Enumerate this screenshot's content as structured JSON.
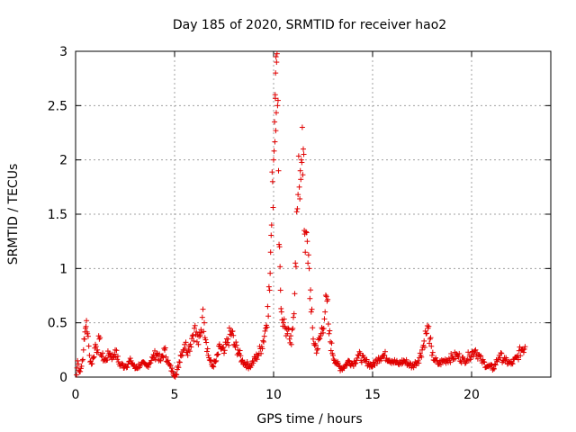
{
  "chart_data": {
    "type": "scatter",
    "title": "Day 185 of 2020, SRMTID for receiver hao2",
    "xlabel": "GPS time / hours",
    "ylabel": "SRMTID / TECUs",
    "xlim": [
      0,
      24
    ],
    "ylim": [
      0,
      3
    ],
    "xticks": [
      0,
      5,
      10,
      15,
      20
    ],
    "yticks": [
      0,
      0.5,
      1,
      1.5,
      2,
      2.5,
      3
    ],
    "xtick_labels": [
      "0",
      "5",
      "10",
      "15",
      "20"
    ],
    "ytick_labels": [
      "0",
      "0.5",
      "1",
      "1.5",
      "2",
      "2.5",
      "3"
    ],
    "grid": true,
    "marker": "+",
    "color": "#e00000",
    "x_range_data": [
      0,
      22.7
    ],
    "series": [
      {
        "name": "hao2",
        "points": [
          [
            0.05,
            0.02
          ],
          [
            0.1,
            0.15
          ],
          [
            0.2,
            0.05
          ],
          [
            0.3,
            0.1
          ],
          [
            0.4,
            0.25
          ],
          [
            0.45,
            0.35
          ],
          [
            0.5,
            0.45
          ],
          [
            0.55,
            0.52
          ],
          [
            0.6,
            0.4
          ],
          [
            0.7,
            0.2
          ],
          [
            0.8,
            0.12
          ],
          [
            0.9,
            0.18
          ],
          [
            1.0,
            0.3
          ],
          [
            1.1,
            0.25
          ],
          [
            1.2,
            0.35
          ],
          [
            1.3,
            0.2
          ],
          [
            1.5,
            0.15
          ],
          [
            1.7,
            0.22
          ],
          [
            1.9,
            0.18
          ],
          [
            2.0,
            0.25
          ],
          [
            2.2,
            0.12
          ],
          [
            2.5,
            0.1
          ],
          [
            2.8,
            0.15
          ],
          [
            3.0,
            0.08
          ],
          [
            3.3,
            0.12
          ],
          [
            3.6,
            0.1
          ],
          [
            3.9,
            0.18
          ],
          [
            4.1,
            0.22
          ],
          [
            4.3,
            0.15
          ],
          [
            4.5,
            0.25
          ],
          [
            4.7,
            0.12
          ],
          [
            4.9,
            0.05
          ],
          [
            5.1,
            0.02
          ],
          [
            5.3,
            0.2
          ],
          [
            5.5,
            0.3
          ],
          [
            5.7,
            0.25
          ],
          [
            5.9,
            0.38
          ],
          [
            6.0,
            0.45
          ],
          [
            6.2,
            0.3
          ],
          [
            6.4,
            0.55
          ],
          [
            6.5,
            0.5
          ],
          [
            6.7,
            0.2
          ],
          [
            6.9,
            0.1
          ],
          [
            7.1,
            0.15
          ],
          [
            7.3,
            0.28
          ],
          [
            7.5,
            0.22
          ],
          [
            7.7,
            0.35
          ],
          [
            7.9,
            0.42
          ],
          [
            8.0,
            0.3
          ],
          [
            8.2,
            0.25
          ],
          [
            8.4,
            0.15
          ],
          [
            8.6,
            0.12
          ],
          [
            8.8,
            0.1
          ],
          [
            9.0,
            0.15
          ],
          [
            9.2,
            0.2
          ],
          [
            9.4,
            0.28
          ],
          [
            9.6,
            0.45
          ],
          [
            9.7,
            0.65
          ],
          [
            9.8,
            0.8
          ],
          [
            9.85,
            1.15
          ],
          [
            9.9,
            1.4
          ],
          [
            9.95,
            1.8
          ],
          [
            10.0,
            2.0
          ],
          [
            10.05,
            2.35
          ],
          [
            10.08,
            2.6
          ],
          [
            10.1,
            2.8
          ],
          [
            10.12,
            2.95
          ],
          [
            10.15,
            2.9
          ],
          [
            10.2,
            2.5
          ],
          [
            10.25,
            1.9
          ],
          [
            10.3,
            1.2
          ],
          [
            10.35,
            0.8
          ],
          [
            10.4,
            0.6
          ],
          [
            10.5,
            0.5
          ],
          [
            10.6,
            0.45
          ],
          [
            10.7,
            0.4
          ],
          [
            10.8,
            0.35
          ],
          [
            10.9,
            0.3
          ],
          [
            11.0,
            0.55
          ],
          [
            11.1,
            1.05
          ],
          [
            11.2,
            1.55
          ],
          [
            11.3,
            1.75
          ],
          [
            11.35,
            1.9
          ],
          [
            11.4,
            2.0
          ],
          [
            11.45,
            2.3
          ],
          [
            11.5,
            2.1
          ],
          [
            11.55,
            1.35
          ],
          [
            11.6,
            1.15
          ],
          [
            11.7,
            1.25
          ],
          [
            11.8,
            1.0
          ],
          [
            11.9,
            0.6
          ],
          [
            12.0,
            0.35
          ],
          [
            12.2,
            0.25
          ],
          [
            12.4,
            0.4
          ],
          [
            12.6,
            0.6
          ],
          [
            12.7,
            0.7
          ],
          [
            12.8,
            0.4
          ],
          [
            13.0,
            0.2
          ],
          [
            13.2,
            0.12
          ],
          [
            13.4,
            0.08
          ],
          [
            13.6,
            0.1
          ],
          [
            13.8,
            0.15
          ],
          [
            14.0,
            0.12
          ],
          [
            14.3,
            0.2
          ],
          [
            14.6,
            0.15
          ],
          [
            15.0,
            0.1
          ],
          [
            15.3,
            0.18
          ],
          [
            15.6,
            0.2
          ],
          [
            16.0,
            0.15
          ],
          [
            16.3,
            0.12
          ],
          [
            16.6,
            0.15
          ],
          [
            17.0,
            0.1
          ],
          [
            17.3,
            0.15
          ],
          [
            17.5,
            0.25
          ],
          [
            17.7,
            0.4
          ],
          [
            17.8,
            0.45
          ],
          [
            17.9,
            0.35
          ],
          [
            18.0,
            0.2
          ],
          [
            18.3,
            0.12
          ],
          [
            18.6,
            0.15
          ],
          [
            19.0,
            0.18
          ],
          [
            19.3,
            0.2
          ],
          [
            19.6,
            0.15
          ],
          [
            19.9,
            0.2
          ],
          [
            20.2,
            0.25
          ],
          [
            20.5,
            0.15
          ],
          [
            20.8,
            0.1
          ],
          [
            21.1,
            0.08
          ],
          [
            21.4,
            0.2
          ],
          [
            21.7,
            0.15
          ],
          [
            22.0,
            0.12
          ],
          [
            22.3,
            0.18
          ],
          [
            22.5,
            0.25
          ],
          [
            22.7,
            0.28
          ]
        ]
      }
    ]
  }
}
